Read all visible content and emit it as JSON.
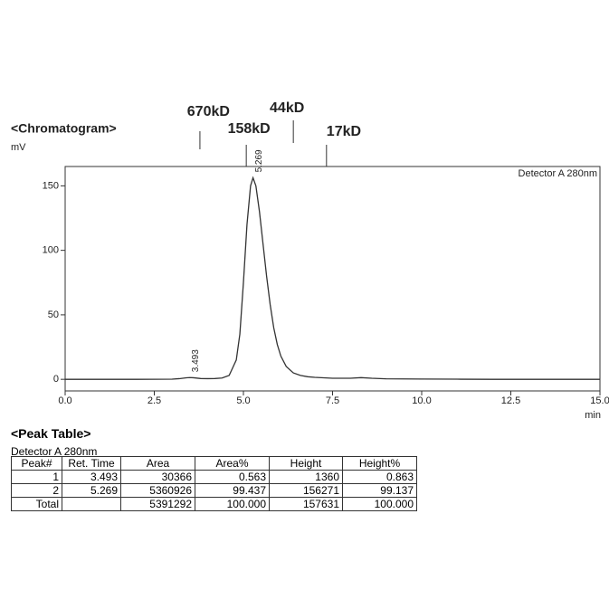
{
  "chart_data": {
    "type": "line",
    "title": "<Chromatogram>",
    "y_label": "mV",
    "x_label": "min",
    "x": [
      0,
      1,
      2,
      3,
      3.2,
      3.4,
      3.493,
      3.6,
      3.8,
      4.0,
      4.2,
      4.4,
      4.6,
      4.8,
      4.9,
      5.0,
      5.1,
      5.2,
      5.269,
      5.35,
      5.45,
      5.55,
      5.65,
      5.75,
      5.85,
      5.95,
      6.05,
      6.2,
      6.4,
      6.6,
      6.8,
      7.0,
      7.5,
      8.0,
      8.3,
      8.6,
      9,
      10,
      11,
      12,
      13,
      14,
      15
    ],
    "series": [
      {
        "name": "Detector A 280nm",
        "color": "#333333",
        "values": [
          0,
          0,
          0,
          0.1,
          0.5,
          1.2,
          1.36,
          1.2,
          0.6,
          0.5,
          0.6,
          1,
          3,
          15,
          35,
          75,
          120,
          150,
          156.3,
          150,
          130,
          105,
          80,
          58,
          40,
          27,
          18,
          10,
          5,
          3,
          2,
          1.5,
          0.8,
          0.8,
          1.3,
          0.8,
          0.4,
          0.2,
          0.1,
          0,
          0,
          0,
          0
        ]
      }
    ],
    "peak_annotations": [
      {
        "x": 3.493,
        "y": 1.36
      },
      {
        "x": 5.269,
        "y": 156.3
      }
    ],
    "markers": [
      {
        "label": "670kD",
        "x": 3.78
      },
      {
        "label": "158kD",
        "x": 5.08
      },
      {
        "label": "44kD",
        "x": 6.4
      },
      {
        "label": "17kD",
        "x": 7.33
      }
    ],
    "xlim": [
      0,
      15
    ],
    "ylim": [
      -9,
      165
    ],
    "xticks": [
      {
        "value": 0,
        "label": "0.0"
      },
      {
        "value": 2.5,
        "label": "2.5"
      },
      {
        "value": 5,
        "label": "5.0"
      },
      {
        "value": 7.5,
        "label": "7.5"
      },
      {
        "value": 10,
        "label": "10.0"
      },
      {
        "value": 12.5,
        "label": "12.5"
      },
      {
        "value": 15,
        "label": "15.0"
      }
    ],
    "yticks": [
      0,
      50,
      100,
      150
    ]
  },
  "peak_table": {
    "title": "<Peak Table>",
    "detector": "Detector A 280nm",
    "columns": [
      "Peak#",
      "Ret. Time",
      "Area",
      "Area%",
      "Height",
      "Height%"
    ],
    "rows": [
      [
        "1",
        "3.493",
        "30366",
        "0.563",
        "1360",
        "0.863"
      ],
      [
        "2",
        "5.269",
        "5360926",
        "99.437",
        "156271",
        "99.137"
      ],
      [
        "Total",
        "",
        "5391292",
        "100.000",
        "157631",
        "100.000"
      ]
    ]
  }
}
